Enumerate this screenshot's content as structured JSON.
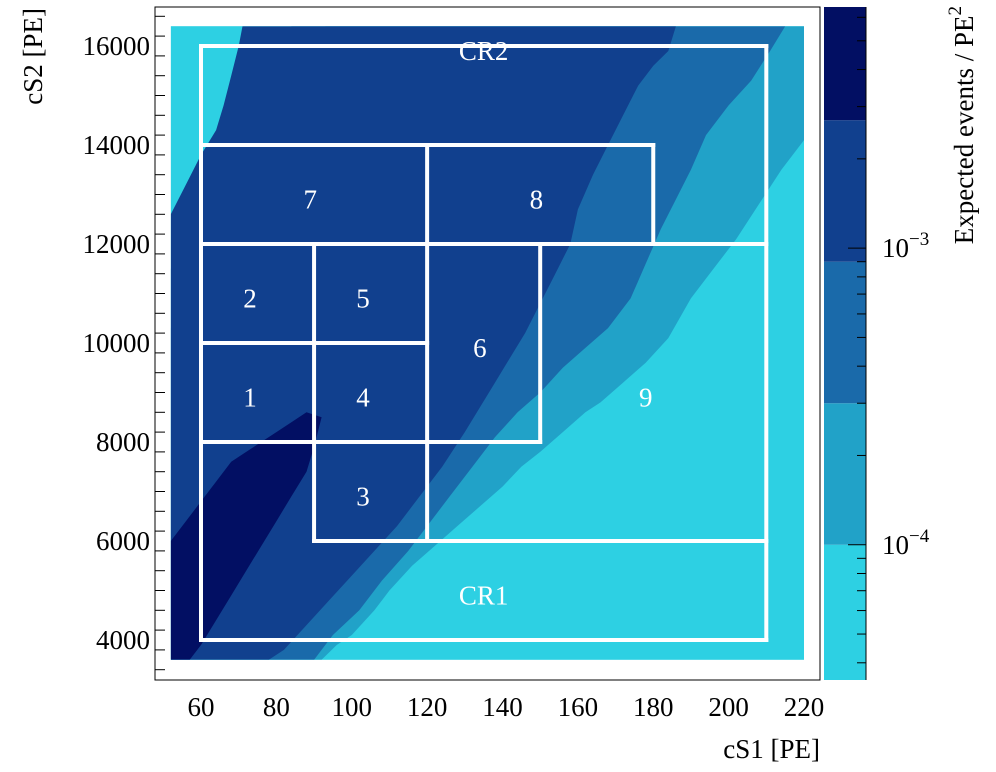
{
  "chart_data": {
    "type": "heatmap",
    "title": "",
    "xlabel": "cS1  [PE]",
    "ylabel": "cS2  [PE]",
    "xlim": [
      48,
      223
    ],
    "ylim": [
      3300,
      16800
    ],
    "x_data_extent": [
      52,
      220
    ],
    "y_data_extent": [
      3600,
      16400
    ],
    "x_ticks": [
      60,
      80,
      100,
      120,
      140,
      160,
      180,
      200,
      220
    ],
    "y_ticks": [
      4000,
      6000,
      8000,
      10000,
      12000,
      14000,
      16000
    ],
    "x_tick_labels": [
      "60",
      "80",
      "100",
      "120",
      "140",
      "160",
      "180",
      "200",
      "220"
    ],
    "y_tick_labels": [
      "4000",
      "6000",
      "8000",
      "10000",
      "12000",
      "14000",
      "16000"
    ],
    "colorbar": {
      "label": "Expected events / PE",
      "label_superscript": "2",
      "scale": "log",
      "range": [
        3.5e-05,
        0.0065
      ],
      "levels": [
        3.5e-05,
        0.0001,
        0.0003,
        0.0009,
        0.0027,
        0.0065
      ],
      "major_ticks": [
        {
          "value": 0.0001,
          "base": "10",
          "exp": "−4"
        },
        {
          "value": 0.001,
          "base": "10",
          "exp": "−3"
        }
      ],
      "minor_ticks": [
        4e-05,
        5e-05,
        6e-05,
        7e-05,
        8e-05,
        9e-05,
        0.0002,
        0.0003,
        0.0004,
        0.0005,
        0.0006,
        0.0007,
        0.0008,
        0.0009,
        0.002,
        0.003,
        0.004,
        0.005,
        0.006
      ],
      "colors": [
        "#2dd0e3",
        "#21a2c8",
        "#1a6aaa",
        "#11408e",
        "#020f63"
      ]
    },
    "contours": [
      {
        "level": 1,
        "color": "#21a2c8",
        "points": [
          [
            52,
            10300
          ],
          [
            55,
            10800
          ],
          [
            58,
            11200
          ],
          [
            62,
            11700
          ],
          [
            66,
            12300
          ],
          [
            70,
            12800
          ],
          [
            74,
            13200
          ],
          [
            77,
            13700
          ],
          [
            80,
            14300
          ],
          [
            84,
            14900
          ],
          [
            88,
            15400
          ],
          [
            91,
            15900
          ],
          [
            93,
            16400
          ],
          [
            220,
            16400
          ],
          [
            220,
            14100
          ],
          [
            214,
            13500
          ],
          [
            208,
            12800
          ],
          [
            202,
            12100
          ],
          [
            196,
            11500
          ],
          [
            190,
            10900
          ],
          [
            184,
            10100
          ],
          [
            178,
            9600
          ],
          [
            172,
            9200
          ],
          [
            166,
            8800
          ],
          [
            162,
            8600
          ],
          [
            156,
            8200
          ],
          [
            150,
            7800
          ],
          [
            145,
            7500
          ],
          [
            140,
            7100
          ],
          [
            134,
            6700
          ],
          [
            128,
            6300
          ],
          [
            122,
            5900
          ],
          [
            116,
            5500
          ],
          [
            110,
            5000
          ],
          [
            106,
            4600
          ],
          [
            100,
            4100
          ],
          [
            96,
            3900
          ],
          [
            92,
            3600
          ],
          [
            52,
            3600
          ]
        ]
      },
      {
        "level": 2,
        "color": "#1a6aaa",
        "points": [
          [
            52,
            11500
          ],
          [
            58,
            12200
          ],
          [
            63,
            12800
          ],
          [
            67,
            13400
          ],
          [
            70,
            14000
          ],
          [
            74,
            14500
          ],
          [
            77,
            15000
          ],
          [
            81,
            15700
          ],
          [
            84,
            16400
          ],
          [
            215,
            16400
          ],
          [
            211,
            15900
          ],
          [
            206,
            15300
          ],
          [
            200,
            14800
          ],
          [
            194,
            14200
          ],
          [
            190,
            13500
          ],
          [
            186,
            12900
          ],
          [
            182,
            12300
          ],
          [
            178,
            11600
          ],
          [
            174,
            10900
          ],
          [
            168,
            10300
          ],
          [
            162,
            9900
          ],
          [
            156,
            9500
          ],
          [
            150,
            9000
          ],
          [
            144,
            8600
          ],
          [
            138,
            8100
          ],
          [
            132,
            7500
          ],
          [
            126,
            6900
          ],
          [
            120,
            6300
          ],
          [
            115,
            5800
          ],
          [
            108,
            5200
          ],
          [
            102,
            4600
          ],
          [
            95,
            4100
          ],
          [
            90,
            3600
          ],
          [
            52,
            3600
          ]
        ]
      },
      {
        "level": 3,
        "color": "#11408e",
        "points": [
          [
            52,
            12600
          ],
          [
            56,
            13200
          ],
          [
            60,
            13800
          ],
          [
            64,
            14300
          ],
          [
            66,
            14800
          ],
          [
            68,
            15400
          ],
          [
            70,
            16000
          ],
          [
            71,
            16400
          ],
          [
            186,
            16400
          ],
          [
            184,
            15900
          ],
          [
            180,
            15600
          ],
          [
            176,
            15200
          ],
          [
            172,
            14600
          ],
          [
            168,
            14000
          ],
          [
            164,
            13400
          ],
          [
            160,
            12700
          ],
          [
            158,
            12000
          ],
          [
            154,
            11400
          ],
          [
            150,
            10800
          ],
          [
            146,
            10200
          ],
          [
            142,
            9700
          ],
          [
            138,
            9200
          ],
          [
            134,
            8700
          ],
          [
            130,
            8200
          ],
          [
            124,
            7500
          ],
          [
            118,
            6900
          ],
          [
            112,
            6300
          ],
          [
            106,
            5800
          ],
          [
            100,
            5300
          ],
          [
            94,
            4800
          ],
          [
            88,
            4300
          ],
          [
            82,
            3800
          ],
          [
            78,
            3600
          ],
          [
            52,
            3600
          ]
        ]
      },
      {
        "level": 4,
        "color": "#020f63",
        "points": [
          [
            52,
            6000
          ],
          [
            56,
            6400
          ],
          [
            60,
            6800
          ],
          [
            64,
            7200
          ],
          [
            68,
            7600
          ],
          [
            72,
            7800
          ],
          [
            76,
            8000
          ],
          [
            80,
            8200
          ],
          [
            84,
            8400
          ],
          [
            88,
            8600
          ],
          [
            92,
            8500
          ],
          [
            90,
            7900
          ],
          [
            88,
            7400
          ],
          [
            84,
            6900
          ],
          [
            80,
            6400
          ],
          [
            76,
            5900
          ],
          [
            72,
            5400
          ],
          [
            68,
            4900
          ],
          [
            64,
            4400
          ],
          [
            60,
            3900
          ],
          [
            57,
            3600
          ],
          [
            52,
            3600
          ]
        ]
      }
    ],
    "analysis_bins": [
      {
        "label": "1",
        "x": [
          60,
          90
        ],
        "y": [
          8000,
          10000
        ],
        "label_pos": [
          73,
          8900
        ]
      },
      {
        "label": "2",
        "x": [
          60,
          90
        ],
        "y": [
          10000,
          12000
        ],
        "label_pos": [
          73,
          10900
        ]
      },
      {
        "label": "3",
        "x": [
          90,
          120
        ],
        "y": [
          6000,
          8000
        ],
        "label_pos": [
          103,
          6900
        ]
      },
      {
        "label": "4",
        "x": [
          90,
          120
        ],
        "y": [
          8000,
          10000
        ],
        "label_pos": [
          103,
          8900
        ]
      },
      {
        "label": "5",
        "x": [
          90,
          120
        ],
        "y": [
          10000,
          12000
        ],
        "label_pos": [
          103,
          10900
        ]
      },
      {
        "label": "6",
        "x": [
          120,
          150
        ],
        "y": [
          8000,
          12000
        ],
        "label_pos": [
          134,
          9900
        ]
      },
      {
        "label": "7",
        "x": [
          60,
          120
        ],
        "y": [
          12000,
          14000
        ],
        "label_pos": [
          89,
          12900
        ]
      },
      {
        "label": "8",
        "x": [
          120,
          180
        ],
        "y": [
          12000,
          14000
        ],
        "label_pos": [
          149,
          12900
        ]
      },
      {
        "label": "9",
        "label_pos": [
          178,
          8900
        ]
      },
      {
        "label": "CR1",
        "label_pos": [
          135,
          4900
        ]
      },
      {
        "label": "CR2",
        "label_pos": [
          135,
          15900
        ]
      }
    ],
    "grid_lines": [
      [
        [
          60,
          4000
        ],
        [
          210,
          4000
        ]
      ],
      [
        [
          210,
          4000
        ],
        [
          210,
          16000
        ]
      ],
      [
        [
          210,
          16000
        ],
        [
          60,
          16000
        ]
      ],
      [
        [
          60,
          16000
        ],
        [
          60,
          4000
        ]
      ],
      [
        [
          90,
          6000
        ],
        [
          210,
          6000
        ]
      ],
      [
        [
          60,
          8000
        ],
        [
          150,
          8000
        ]
      ],
      [
        [
          60,
          10000
        ],
        [
          120,
          10000
        ]
      ],
      [
        [
          60,
          12000
        ],
        [
          210,
          12000
        ]
      ],
      [
        [
          60,
          14000
        ],
        [
          180,
          14000
        ]
      ],
      [
        [
          90,
          6000
        ],
        [
          90,
          12000
        ]
      ],
      [
        [
          120,
          6000
        ],
        [
          120,
          14000
        ]
      ],
      [
        [
          150,
          8000
        ],
        [
          150,
          12000
        ]
      ],
      [
        [
          180,
          12000
        ],
        [
          180,
          14000
        ]
      ]
    ],
    "grid": false,
    "legend": "none"
  }
}
